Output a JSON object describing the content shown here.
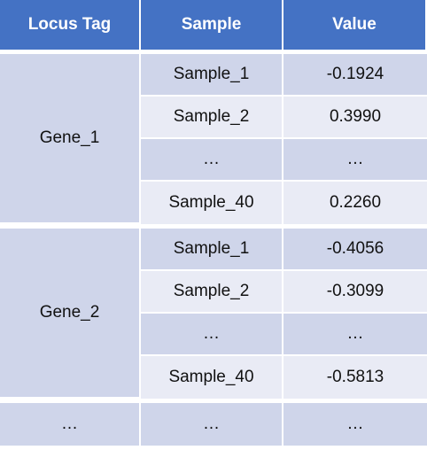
{
  "table": {
    "headers": [
      "Locus Tag",
      "Sample",
      "Value"
    ],
    "groups": [
      {
        "locus": "Gene_1",
        "rows": [
          {
            "sample": "Sample_1",
            "value": "-0.1924"
          },
          {
            "sample": "Sample_2",
            "value": "0.3990"
          },
          {
            "sample": "…",
            "value": "…"
          },
          {
            "sample": "Sample_40",
            "value": "0.2260"
          }
        ]
      },
      {
        "locus": "Gene_2",
        "rows": [
          {
            "sample": "Sample_1",
            "value": "-0.4056"
          },
          {
            "sample": "Sample_2",
            "value": "-0.3099"
          },
          {
            "sample": "…",
            "value": "…"
          },
          {
            "sample": "Sample_40",
            "value": "-0.5813"
          }
        ]
      }
    ],
    "last_row": {
      "locus": "…",
      "sample": "…",
      "value": "…"
    }
  }
}
